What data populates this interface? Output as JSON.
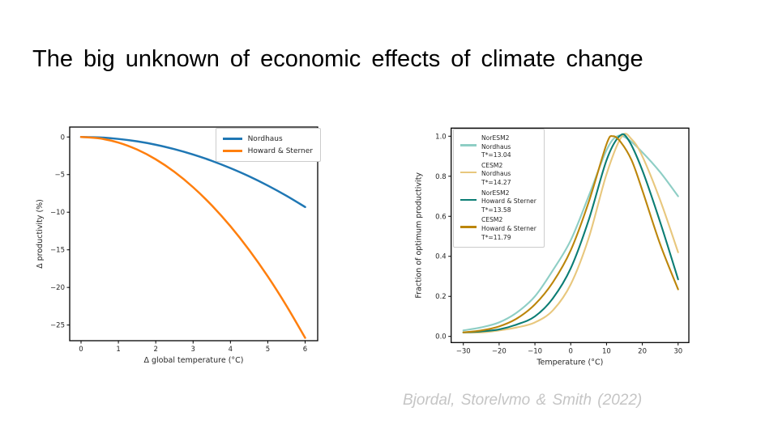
{
  "slide": {
    "title": "The big unknown of economic effects of climate change",
    "citation": "Bjordal, Storelvmo & Smith (2022)"
  },
  "chart_data": [
    {
      "type": "line",
      "title": "",
      "xlabel": "Δ global temperature (°C)",
      "ylabel": "Δ productivity (%)",
      "xlim": [
        0,
        6
      ],
      "ylim": [
        -27,
        0.5
      ],
      "grid": false,
      "legend_position": "upper right",
      "xticks": [
        0,
        1,
        2,
        3,
        4,
        5,
        6
      ],
      "xtick_labels": [
        "0",
        "1",
        "2",
        "3",
        "4",
        "5",
        "6"
      ],
      "yticks": [
        0,
        -5,
        -10,
        -15,
        -20,
        -25
      ],
      "ytick_labels": [
        "0",
        "−5",
        "−10",
        "−15",
        "−20",
        "−25"
      ],
      "series": [
        {
          "name": "Nordhaus",
          "color": "#1f77b4",
          "points": [
            [
              0,
              0
            ],
            [
              0.5,
              -0.06
            ],
            [
              1,
              -0.26
            ],
            [
              1.5,
              -0.58
            ],
            [
              2,
              -1.03
            ],
            [
              2.5,
              -1.62
            ],
            [
              3,
              -2.33
            ],
            [
              3.5,
              -3.17
            ],
            [
              4,
              -4.14
            ],
            [
              4.5,
              -5.23
            ],
            [
              5,
              -6.46
            ],
            [
              5.5,
              -7.82
            ],
            [
              6,
              -9.31
            ]
          ]
        },
        {
          "name": "Howard & Sterner",
          "color": "#ff7f0e",
          "points": [
            [
              0,
              0
            ],
            [
              0.5,
              -0.19
            ],
            [
              1,
              -0.74
            ],
            [
              1.5,
              -1.67
            ],
            [
              2,
              -2.97
            ],
            [
              2.5,
              -4.64
            ],
            [
              3,
              -6.68
            ],
            [
              3.5,
              -9.09
            ],
            [
              4,
              -11.87
            ],
            [
              4.5,
              -15.02
            ],
            [
              5,
              -18.54
            ],
            [
              5.5,
              -22.44
            ],
            [
              6,
              -26.7
            ]
          ]
        }
      ]
    },
    {
      "type": "line",
      "title": "",
      "xlabel": "Temperature (°C)",
      "ylabel": "Fraction of optimum productivity",
      "xlim": [
        -30,
        30
      ],
      "ylim": [
        0.0,
        1.0
      ],
      "grid": false,
      "legend_position": "upper left",
      "xticks": [
        -30,
        -20,
        -10,
        0,
        10,
        20,
        30
      ],
      "xtick_labels": [
        "−30",
        "−20",
        "−10",
        "0",
        "10",
        "20",
        "30"
      ],
      "yticks": [
        0.0,
        0.2,
        0.4,
        0.6,
        0.8,
        1.0
      ],
      "ytick_labels": [
        "0.0",
        "0.2",
        "0.4",
        "0.6",
        "0.8",
        "1.0"
      ],
      "series": [
        {
          "name": "NorESM2 Nordhaus T*=13.04",
          "legend_lines": [
            "NorESM2",
            "Nordhaus",
            "T*=13.04"
          ],
          "optimum_temperature": 13.04,
          "color": "#8ecec5",
          "points": [
            [
              -30,
              0.03
            ],
            [
              -25,
              0.045
            ],
            [
              -20,
              0.07
            ],
            [
              -15,
              0.12
            ],
            [
              -10,
              0.2
            ],
            [
              -5,
              0.33
            ],
            [
              0,
              0.48
            ],
            [
              5,
              0.7
            ],
            [
              10,
              0.93
            ],
            [
              13,
              1.0
            ],
            [
              16,
              0.985
            ],
            [
              20,
              0.92
            ],
            [
              25,
              0.82
            ],
            [
              30,
              0.7
            ]
          ]
        },
        {
          "name": "CESM2 Nordhaus T*=14.27",
          "legend_lines": [
            "CESM2",
            "Nordhaus",
            "T*=14.27"
          ],
          "optimum_temperature": 14.27,
          "color": "#e8c77d",
          "points": [
            [
              -30,
              0.02
            ],
            [
              -25,
              0.02
            ],
            [
              -20,
              0.03
            ],
            [
              -15,
              0.045
            ],
            [
              -10,
              0.07
            ],
            [
              -5,
              0.13
            ],
            [
              0,
              0.26
            ],
            [
              5,
              0.49
            ],
            [
              10,
              0.81
            ],
            [
              14.3,
              1.0
            ],
            [
              17,
              0.985
            ],
            [
              20,
              0.9
            ],
            [
              25,
              0.68
            ],
            [
              30,
              0.42
            ]
          ]
        },
        {
          "name": "NorESM2 Howard & Sterner T*=13.58",
          "legend_lines": [
            "NorESM2",
            "Howard & Sterner",
            "T*=13.58"
          ],
          "optimum_temperature": 13.58,
          "color": "#0b7d74",
          "points": [
            [
              -30,
              0.02
            ],
            [
              -25,
              0.025
            ],
            [
              -20,
              0.035
            ],
            [
              -15,
              0.06
            ],
            [
              -10,
              0.1
            ],
            [
              -5,
              0.19
            ],
            [
              0,
              0.34
            ],
            [
              5,
              0.58
            ],
            [
              10,
              0.88
            ],
            [
              13.6,
              1.0
            ],
            [
              16,
              0.985
            ],
            [
              20,
              0.83
            ],
            [
              25,
              0.57
            ],
            [
              30,
              0.285
            ]
          ]
        },
        {
          "name": "CESM2 Howard & Sterner T*=11.79",
          "legend_lines": [
            "CESM2",
            "Howard & Sterner",
            "T*=11.79"
          ],
          "optimum_temperature": 11.79,
          "color": "#bc860b",
          "points": [
            [
              -30,
              0.02
            ],
            [
              -25,
              0.03
            ],
            [
              -20,
              0.05
            ],
            [
              -15,
              0.09
            ],
            [
              -10,
              0.16
            ],
            [
              -5,
              0.27
            ],
            [
              0,
              0.43
            ],
            [
              5,
              0.67
            ],
            [
              10,
              0.96
            ],
            [
              11.8,
              1.0
            ],
            [
              14,
              0.97
            ],
            [
              17,
              0.88
            ],
            [
              20,
              0.73
            ],
            [
              25,
              0.46
            ],
            [
              30,
              0.235
            ]
          ]
        }
      ]
    }
  ]
}
